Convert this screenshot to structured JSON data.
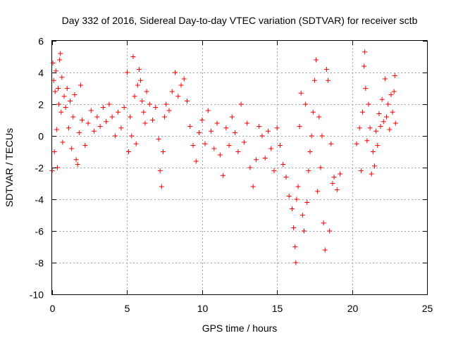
{
  "chart_data": {
    "type": "scatter",
    "title": "Day 332 of 2016, Sidereal Day-to-day VTEC variation (SDTVAR) for receiver sctb",
    "xlabel": "GPS time / hours",
    "ylabel": "SDTVAR / TECUs",
    "xlim": [
      0,
      25
    ],
    "ylim": [
      -10,
      6
    ],
    "xticks": [
      0,
      5,
      10,
      15,
      20,
      25
    ],
    "yticks": [
      -10,
      -8,
      -6,
      -4,
      -2,
      0,
      2,
      4,
      6
    ],
    "grid": true,
    "legend": "none",
    "marker": "plus",
    "color": "#ff0000",
    "series": [
      {
        "name": "SDTVAR",
        "points": [
          [
            0.0,
            -2.2
          ],
          [
            0.05,
            4.6
          ],
          [
            0.1,
            3.5
          ],
          [
            0.15,
            -1.0
          ],
          [
            0.2,
            2.8
          ],
          [
            0.25,
            4.1
          ],
          [
            0.3,
            0.4
          ],
          [
            0.35,
            -2.0
          ],
          [
            0.4,
            3.0
          ],
          [
            0.45,
            2.0
          ],
          [
            0.5,
            4.8
          ],
          [
            0.55,
            5.2
          ],
          [
            0.6,
            1.5
          ],
          [
            0.65,
            3.7
          ],
          [
            0.7,
            -0.4
          ],
          [
            0.8,
            2.5
          ],
          [
            0.9,
            1.8
          ],
          [
            1.0,
            3.0
          ],
          [
            1.1,
            0.5
          ],
          [
            1.2,
            2.2
          ],
          [
            1.3,
            -0.8
          ],
          [
            1.4,
            1.2
          ],
          [
            1.5,
            2.6
          ],
          [
            1.6,
            -1.5
          ],
          [
            1.7,
            -1.8
          ],
          [
            1.8,
            0.2
          ],
          [
            1.9,
            3.2
          ],
          [
            2.0,
            1.0
          ],
          [
            2.2,
            -0.6
          ],
          [
            2.4,
            0.8
          ],
          [
            2.6,
            1.6
          ],
          [
            2.8,
            0.3
          ],
          [
            3.0,
            1.2
          ],
          [
            3.2,
            0.6
          ],
          [
            3.4,
            1.8
          ],
          [
            3.6,
            0.9
          ],
          [
            3.8,
            2.0
          ],
          [
            4.0,
            1.2
          ],
          [
            4.2,
            0.0
          ],
          [
            4.4,
            1.5
          ],
          [
            4.6,
            0.5
          ],
          [
            4.8,
            1.8
          ],
          [
            5.0,
            4.0
          ],
          [
            5.1,
            -1.0
          ],
          [
            5.2,
            1.2
          ],
          [
            5.3,
            0.0
          ],
          [
            5.4,
            5.0
          ],
          [
            5.5,
            2.5
          ],
          [
            5.6,
            -0.5
          ],
          [
            5.7,
            3.2
          ],
          [
            5.8,
            4.2
          ],
          [
            5.9,
            3.5
          ],
          [
            6.0,
            2.2
          ],
          [
            6.1,
            1.5
          ],
          [
            6.2,
            0.8
          ],
          [
            6.3,
            2.8
          ],
          [
            6.5,
            2.0
          ],
          [
            6.7,
            1.0
          ],
          [
            6.9,
            1.8
          ],
          [
            7.1,
            -0.2
          ],
          [
            7.2,
            -2.2
          ],
          [
            7.3,
            -3.2
          ],
          [
            7.4,
            -1.0
          ],
          [
            7.5,
            1.2
          ],
          [
            7.6,
            2.0
          ],
          [
            7.8,
            1.6
          ],
          [
            8.0,
            2.8
          ],
          [
            8.2,
            4.0
          ],
          [
            8.4,
            2.5
          ],
          [
            8.6,
            3.2
          ],
          [
            8.8,
            3.6
          ],
          [
            9.0,
            2.2
          ],
          [
            9.2,
            0.6
          ],
          [
            9.4,
            -0.6
          ],
          [
            9.6,
            -1.6
          ],
          [
            9.8,
            0.2
          ],
          [
            10.0,
            1.0
          ],
          [
            10.2,
            -0.5
          ],
          [
            10.4,
            1.6
          ],
          [
            10.6,
            0.3
          ],
          [
            10.8,
            -0.8
          ],
          [
            11.0,
            0.8
          ],
          [
            11.2,
            -1.2
          ],
          [
            11.4,
            -2.5
          ],
          [
            11.6,
            0.5
          ],
          [
            11.8,
            -0.6
          ],
          [
            12.0,
            1.2
          ],
          [
            12.2,
            0.2
          ],
          [
            12.4,
            -1.0
          ],
          [
            12.6,
            2.0
          ],
          [
            12.8,
            -0.4
          ],
          [
            13.0,
            0.8
          ],
          [
            13.2,
            -2.0
          ],
          [
            13.4,
            -3.2
          ],
          [
            13.6,
            -1.5
          ],
          [
            13.8,
            0.6
          ],
          [
            14.0,
            0.0
          ],
          [
            14.2,
            -1.4
          ],
          [
            14.4,
            0.3
          ],
          [
            14.6,
            -0.8
          ],
          [
            14.8,
            -2.2
          ],
          [
            15.0,
            0.5
          ],
          [
            15.2,
            -0.6
          ],
          [
            15.4,
            -1.8
          ],
          [
            15.6,
            -2.6
          ],
          [
            15.8,
            -3.8
          ],
          [
            16.0,
            -4.6
          ],
          [
            16.1,
            -5.8
          ],
          [
            16.2,
            -7.0
          ],
          [
            16.25,
            -8.0
          ],
          [
            16.3,
            -4.0
          ],
          [
            16.4,
            -3.2
          ],
          [
            16.5,
            0.6
          ],
          [
            16.6,
            2.7
          ],
          [
            16.7,
            -5.0
          ],
          [
            16.8,
            -6.0
          ],
          [
            16.9,
            2.0
          ],
          [
            17.0,
            -4.2
          ],
          [
            17.1,
            -2.2
          ],
          [
            17.2,
            -1.0
          ],
          [
            17.3,
            0.0
          ],
          [
            17.4,
            1.5
          ],
          [
            17.5,
            3.5
          ],
          [
            17.6,
            4.8
          ],
          [
            17.7,
            -3.5
          ],
          [
            17.8,
            1.2
          ],
          [
            17.9,
            -2.0
          ],
          [
            18.0,
            0.0
          ],
          [
            18.1,
            -5.5
          ],
          [
            18.2,
            -7.2
          ],
          [
            18.3,
            4.2
          ],
          [
            18.4,
            3.5
          ],
          [
            18.5,
            -6.0
          ],
          [
            18.6,
            -0.5
          ],
          [
            18.7,
            -3.0
          ],
          [
            18.8,
            -2.6
          ],
          [
            19.0,
            -3.4
          ],
          [
            19.2,
            -2.4
          ],
          [
            20.3,
            -0.5
          ],
          [
            20.5,
            0.5
          ],
          [
            20.6,
            -2.2
          ],
          [
            20.7,
            1.5
          ],
          [
            20.8,
            4.4
          ],
          [
            20.85,
            5.3
          ],
          [
            20.9,
            3.0
          ],
          [
            21.0,
            -0.3
          ],
          [
            21.1,
            2.0
          ],
          [
            21.2,
            0.5
          ],
          [
            21.3,
            -2.4
          ],
          [
            21.4,
            -1.0
          ],
          [
            21.5,
            -1.9
          ],
          [
            21.6,
            0.3
          ],
          [
            21.7,
            -0.6
          ],
          [
            21.8,
            1.4
          ],
          [
            21.9,
            0.6
          ],
          [
            22.0,
            2.3
          ],
          [
            22.1,
            0.9
          ],
          [
            22.2,
            3.6
          ],
          [
            22.3,
            1.2
          ],
          [
            22.4,
            2.0
          ],
          [
            22.5,
            0.4
          ],
          [
            22.6,
            2.6
          ],
          [
            22.7,
            1.5
          ],
          [
            22.8,
            2.8
          ],
          [
            22.85,
            3.8
          ],
          [
            22.9,
            0.8
          ]
        ]
      }
    ]
  }
}
